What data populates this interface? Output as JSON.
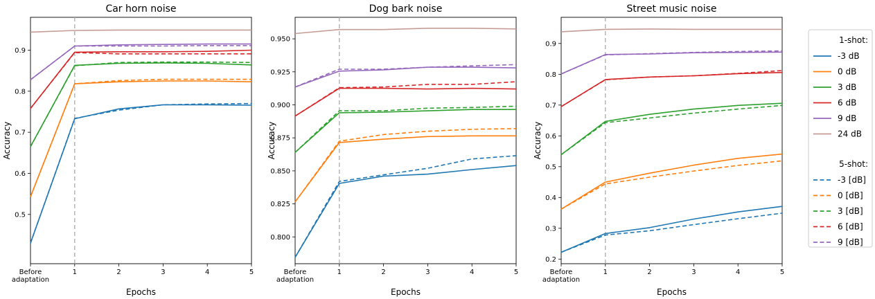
{
  "chart_data": [
    {
      "type": "line",
      "title": "Car horn noise",
      "xlabel": "Epochs",
      "ylabel": "Accuracy",
      "x_tick_labels": [
        "Before\nadaptation",
        "1",
        "2",
        "3",
        "4",
        "5"
      ],
      "x": [
        0,
        1,
        2,
        3,
        4,
        5
      ],
      "xlim": [
        0,
        5
      ],
      "ylim": [
        0.38,
        0.98
      ],
      "y_ticks": [
        0.5,
        0.6,
        0.7,
        0.8,
        0.9
      ],
      "y_tick_labels": [
        "0.5",
        "0.6",
        "0.7",
        "0.8",
        "0.9"
      ],
      "vline_x": 1,
      "series": [
        {
          "name": "-3 dB",
          "shot": "1-shot",
          "color": "#1f77b4",
          "dash": false,
          "values": [
            0.43,
            0.733,
            0.757,
            0.767,
            0.767,
            0.766
          ]
        },
        {
          "name": "0 dB",
          "shot": "1-shot",
          "color": "#ff7f0e",
          "dash": false,
          "values": [
            0.543,
            0.818,
            0.823,
            0.825,
            0.825,
            0.823
          ]
        },
        {
          "name": "3 dB",
          "shot": "1-shot",
          "color": "#2ca02c",
          "dash": false,
          "values": [
            0.665,
            0.863,
            0.868,
            0.869,
            0.868,
            0.864
          ]
        },
        {
          "name": "6 dB",
          "shot": "1-shot",
          "color": "#d62728",
          "dash": false,
          "values": [
            0.758,
            0.895,
            0.896,
            0.896,
            0.897,
            0.9
          ]
        },
        {
          "name": "9 dB",
          "shot": "1-shot",
          "color": "#9467bd",
          "dash": false,
          "values": [
            0.828,
            0.91,
            0.913,
            0.914,
            0.915,
            0.915
          ]
        },
        {
          "name": "24 dB",
          "shot": "1-shot",
          "color": "#c49c94",
          "dash": false,
          "values": [
            0.944,
            0.948,
            0.949,
            0.949,
            0.949,
            0.949
          ]
        },
        {
          "name": "-3 [dB]",
          "shot": "5-shot",
          "color": "#1f77b4",
          "dash": true,
          "values": [
            0.43,
            0.734,
            0.754,
            0.767,
            0.769,
            0.77
          ]
        },
        {
          "name": "0 [dB]",
          "shot": "5-shot",
          "color": "#ff7f0e",
          "dash": true,
          "values": [
            0.543,
            0.818,
            0.826,
            0.829,
            0.829,
            0.829
          ]
        },
        {
          "name": "3 [dB]",
          "shot": "5-shot",
          "color": "#2ca02c",
          "dash": true,
          "values": [
            0.665,
            0.862,
            0.87,
            0.871,
            0.871,
            0.87
          ]
        },
        {
          "name": "6 [dB]",
          "shot": "5-shot",
          "color": "#d62728",
          "dash": true,
          "values": [
            0.758,
            0.894,
            0.891,
            0.891,
            0.891,
            0.891
          ]
        },
        {
          "name": "9 [dB]",
          "shot": "5-shot",
          "color": "#9467bd",
          "dash": true,
          "values": [
            0.828,
            0.91,
            0.91,
            0.91,
            0.911,
            0.911
          ]
        }
      ]
    },
    {
      "type": "line",
      "title": "Dog bark noise",
      "xlabel": "Epochs",
      "ylabel": "Accuracy",
      "x_tick_labels": [
        "Before\nadaptation",
        "1",
        "2",
        "3",
        "4",
        "5"
      ],
      "x": [
        0,
        1,
        2,
        3,
        4,
        5
      ],
      "xlim": [
        0,
        5
      ],
      "ylim": [
        0.7797,
        0.9663
      ],
      "y_ticks": [
        0.8,
        0.825,
        0.85,
        0.875,
        0.9,
        0.925,
        0.95
      ],
      "y_tick_labels": [
        "0.800",
        "0.825",
        "0.850",
        "0.875",
        "0.900",
        "0.925",
        "0.950"
      ],
      "vline_x": 1,
      "series": [
        {
          "name": "-3 dB",
          "shot": "1-shot",
          "color": "#1f77b4",
          "dash": false,
          "values": [
            0.7845,
            0.8405,
            0.846,
            0.8475,
            0.851,
            0.854
          ]
        },
        {
          "name": "0 dB",
          "shot": "1-shot",
          "color": "#ff7f0e",
          "dash": false,
          "values": [
            0.8265,
            0.8715,
            0.874,
            0.876,
            0.8765,
            0.8765
          ]
        },
        {
          "name": "3 dB",
          "shot": "1-shot",
          "color": "#2ca02c",
          "dash": false,
          "values": [
            0.864,
            0.894,
            0.8945,
            0.8955,
            0.8965,
            0.8965
          ]
        },
        {
          "name": "6 dB",
          "shot": "1-shot",
          "color": "#d62728",
          "dash": false,
          "values": [
            0.8915,
            0.9125,
            0.9125,
            0.912,
            0.9125,
            0.912
          ]
        },
        {
          "name": "9 dB",
          "shot": "1-shot",
          "color": "#9467bd",
          "dash": false,
          "values": [
            0.9135,
            0.9255,
            0.9265,
            0.9285,
            0.9285,
            0.928
          ]
        },
        {
          "name": "24 dB",
          "shot": "1-shot",
          "color": "#c49c94",
          "dash": false,
          "values": [
            0.954,
            0.957,
            0.957,
            0.958,
            0.958,
            0.9575
          ]
        },
        {
          "name": "-3 [dB]",
          "shot": "5-shot",
          "color": "#1f77b4",
          "dash": true,
          "values": [
            0.7845,
            0.842,
            0.847,
            0.852,
            0.859,
            0.8615
          ]
        },
        {
          "name": "0 [dB]",
          "shot": "5-shot",
          "color": "#ff7f0e",
          "dash": true,
          "values": [
            0.8265,
            0.8725,
            0.8775,
            0.88,
            0.8815,
            0.882
          ]
        },
        {
          "name": "3 [dB]",
          "shot": "5-shot",
          "color": "#2ca02c",
          "dash": true,
          "values": [
            0.864,
            0.8955,
            0.8955,
            0.8975,
            0.898,
            0.899
          ]
        },
        {
          "name": "6 [dB]",
          "shot": "5-shot",
          "color": "#d62728",
          "dash": true,
          "values": [
            0.8915,
            0.913,
            0.9135,
            0.9155,
            0.9155,
            0.9175
          ]
        },
        {
          "name": "9 [dB]",
          "shot": "5-shot",
          "color": "#9467bd",
          "dash": true,
          "values": [
            0.9135,
            0.927,
            0.927,
            0.9285,
            0.9295,
            0.9305
          ]
        }
      ]
    },
    {
      "type": "line",
      "title": "Street music noise",
      "xlabel": "Epochs",
      "ylabel": "Accuracy",
      "x_tick_labels": [
        "Before\nadaptation",
        "1",
        "2",
        "3",
        "4",
        "5"
      ],
      "x": [
        0,
        1,
        2,
        3,
        4,
        5
      ],
      "xlim": [
        0,
        5
      ],
      "ylim": [
        0.185,
        0.985
      ],
      "y_ticks": [
        0.2,
        0.3,
        0.4,
        0.5,
        0.6,
        0.7,
        0.8,
        0.9
      ],
      "y_tick_labels": [
        "0.2",
        "0.3",
        "0.4",
        "0.5",
        "0.6",
        "0.7",
        "0.8",
        "0.9"
      ],
      "vline_x": 1,
      "series": [
        {
          "name": "-3 dB",
          "shot": "1-shot",
          "color": "#1f77b4",
          "dash": false,
          "values": [
            0.222,
            0.283,
            0.302,
            0.33,
            0.353,
            0.371
          ]
        },
        {
          "name": "0 dB",
          "shot": "1-shot",
          "color": "#ff7f0e",
          "dash": false,
          "values": [
            0.362,
            0.45,
            0.479,
            0.505,
            0.527,
            0.541
          ]
        },
        {
          "name": "3 dB",
          "shot": "1-shot",
          "color": "#2ca02c",
          "dash": false,
          "values": [
            0.539,
            0.647,
            0.67,
            0.687,
            0.699,
            0.706
          ]
        },
        {
          "name": "6 dB",
          "shot": "1-shot",
          "color": "#d62728",
          "dash": false,
          "values": [
            0.695,
            0.783,
            0.791,
            0.795,
            0.802,
            0.806
          ]
        },
        {
          "name": "9 dB",
          "shot": "1-shot",
          "color": "#9467bd",
          "dash": false,
          "values": [
            0.801,
            0.864,
            0.866,
            0.87,
            0.871,
            0.872
          ]
        },
        {
          "name": "24 dB",
          "shot": "1-shot",
          "color": "#c49c94",
          "dash": false,
          "values": [
            0.938,
            0.946,
            0.947,
            0.946,
            0.946,
            0.946
          ]
        },
        {
          "name": "-3 [dB]",
          "shot": "5-shot",
          "color": "#1f77b4",
          "dash": true,
          "values": [
            0.222,
            0.278,
            0.292,
            0.312,
            0.331,
            0.349
          ]
        },
        {
          "name": "0 [dB]",
          "shot": "5-shot",
          "color": "#ff7f0e",
          "dash": true,
          "values": [
            0.362,
            0.444,
            0.466,
            0.486,
            0.504,
            0.519
          ]
        },
        {
          "name": "3 [dB]",
          "shot": "5-shot",
          "color": "#2ca02c",
          "dash": true,
          "values": [
            0.539,
            0.643,
            0.658,
            0.674,
            0.687,
            0.699
          ]
        },
        {
          "name": "6 [dB]",
          "shot": "5-shot",
          "color": "#d62728",
          "dash": true,
          "values": [
            0.695,
            0.782,
            0.791,
            0.795,
            0.803,
            0.812
          ]
        },
        {
          "name": "9 [dB]",
          "shot": "5-shot",
          "color": "#9467bd",
          "dash": true,
          "values": [
            0.801,
            0.863,
            0.867,
            0.871,
            0.874,
            0.876
          ]
        }
      ]
    }
  ],
  "legend": {
    "placement": "right",
    "groups": [
      {
        "title": "1-shot:",
        "entries": [
          {
            "label": "-3 dB",
            "color": "#1f77b4",
            "dash": false
          },
          {
            "label": "0 dB",
            "color": "#ff7f0e",
            "dash": false
          },
          {
            "label": "3 dB",
            "color": "#2ca02c",
            "dash": false
          },
          {
            "label": "6 dB",
            "color": "#d62728",
            "dash": false
          },
          {
            "label": "9 dB",
            "color": "#9467bd",
            "dash": false
          },
          {
            "label": "24 dB",
            "color": "#c49c94",
            "dash": false
          }
        ]
      },
      {
        "title": "5-shot:",
        "entries": [
          {
            "label": "-3 [dB]",
            "color": "#1f77b4",
            "dash": true
          },
          {
            "label": "0 [dB]",
            "color": "#ff7f0e",
            "dash": true
          },
          {
            "label": "3 [dB]",
            "color": "#2ca02c",
            "dash": true
          },
          {
            "label": "6 [dB]",
            "color": "#d62728",
            "dash": true
          },
          {
            "label": "9 [dB]",
            "color": "#9467bd",
            "dash": true
          }
        ]
      }
    ]
  }
}
